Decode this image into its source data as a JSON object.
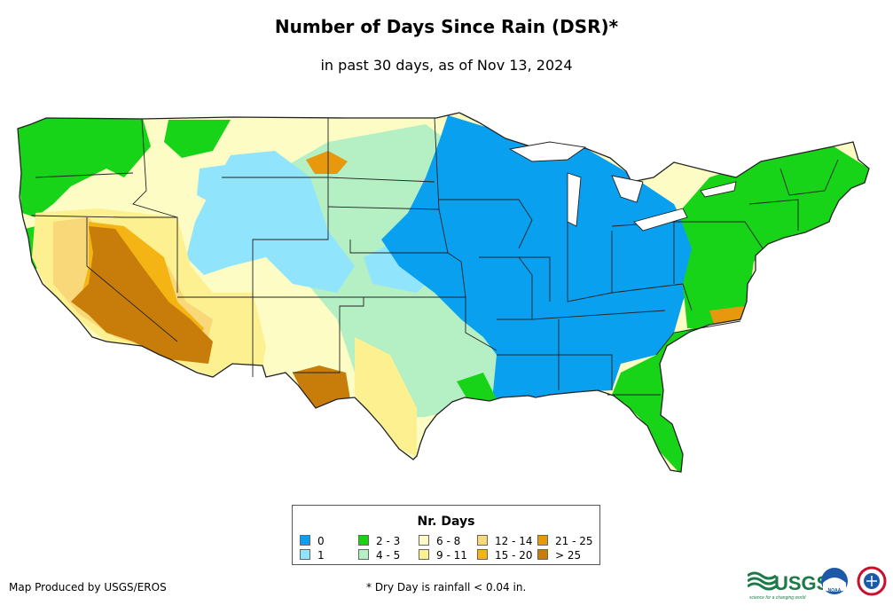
{
  "title": "Number of Days Since Rain (DSR)*",
  "subtitle": "in past 30 days, as of Nov 13, 2024",
  "legend": {
    "title": "Nr. Days",
    "items": [
      {
        "label": "0",
        "color": "#0aa0f0"
      },
      {
        "label": "1",
        "color": "#90e4fc"
      },
      {
        "label": "2 - 3",
        "color": "#18d418"
      },
      {
        "label": "4 - 5",
        "color": "#b4f0c4"
      },
      {
        "label": "6 - 8",
        "color": "#fcfcc4"
      },
      {
        "label": "9 - 11",
        "color": "#fcf090"
      },
      {
        "label": "12 - 14",
        "color": "#f8d878"
      },
      {
        "label": "15 - 20",
        "color": "#f4b414"
      },
      {
        "label": "21 - 25",
        "color": "#e8980c"
      },
      {
        "label": "> 25",
        "color": "#c87d0a"
      }
    ]
  },
  "footer": {
    "credit": "Map Produced by USGS/EROS",
    "note": "* Dry Day is rainfall < 0.04 in."
  },
  "logos": {
    "usgs_text": "USGS",
    "usgs_tagline": "science for a changing world",
    "noaa_text": "NOAA"
  }
}
